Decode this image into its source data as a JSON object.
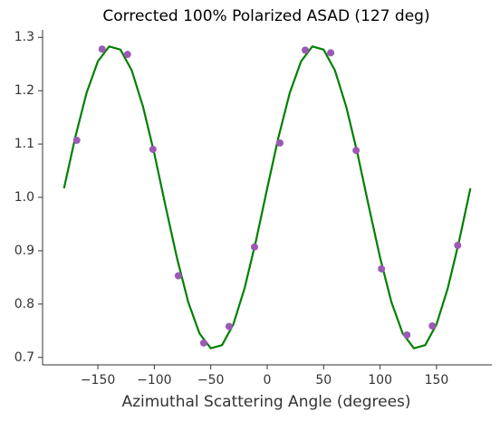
{
  "chart_data": {
    "type": "scatter",
    "title": "Corrected 100% Polarized ASAD (127 deg)",
    "x_label": "Azimuthal Scattering Angle (degrees)",
    "xlim": [
      -199,
      199
    ],
    "ylim": [
      0.686,
      1.314
    ],
    "xticks": [
      {
        "value": -150,
        "label": "−150"
      },
      {
        "value": -100,
        "label": "−100"
      },
      {
        "value": -50,
        "label": "−50"
      },
      0,
      50,
      100,
      150
    ],
    "yticks": [
      0.7,
      0.8,
      0.9,
      {
        "value": 1.0,
        "label": "1.0"
      },
      1.1,
      1.2,
      1.3
    ],
    "series": [
      {
        "mode": "line",
        "color": "#008000",
        "x": [
          -180,
          -170,
          -160,
          -150,
          -140,
          -130,
          -120,
          -110,
          -100,
          -90,
          -80,
          -70,
          -60,
          -50,
          -40,
          -30,
          -20,
          -10,
          0,
          10,
          20,
          30,
          40,
          50,
          60,
          70,
          80,
          90,
          100,
          110,
          120,
          130,
          140,
          150,
          160,
          170,
          180
        ],
        "values": [
          1.017,
          1.113,
          1.196,
          1.255,
          1.283,
          1.277,
          1.238,
          1.17,
          1.082,
          0.983,
          0.887,
          0.804,
          0.745,
          0.717,
          0.723,
          0.762,
          0.83,
          0.918,
          1.017,
          1.113,
          1.196,
          1.255,
          1.283,
          1.277,
          1.238,
          1.17,
          1.082,
          0.983,
          0.887,
          0.804,
          0.745,
          0.717,
          0.723,
          0.762,
          0.83,
          0.918,
          1.017
        ]
      },
      {
        "mode": "markers",
        "color": "#9b59b6",
        "x": [
          -168.75,
          -146.25,
          -123.75,
          -101.25,
          -78.75,
          -56.25,
          -33.75,
          -11.25,
          11.25,
          33.75,
          56.25,
          78.75,
          101.25,
          123.75,
          146.25,
          168.75
        ],
        "values": [
          1.107,
          1.278,
          1.268,
          1.09,
          0.853,
          0.727,
          0.758,
          0.907,
          1.102,
          1.276,
          1.271,
          1.088,
          0.866,
          0.742,
          0.759,
          0.91
        ]
      }
    ]
  }
}
